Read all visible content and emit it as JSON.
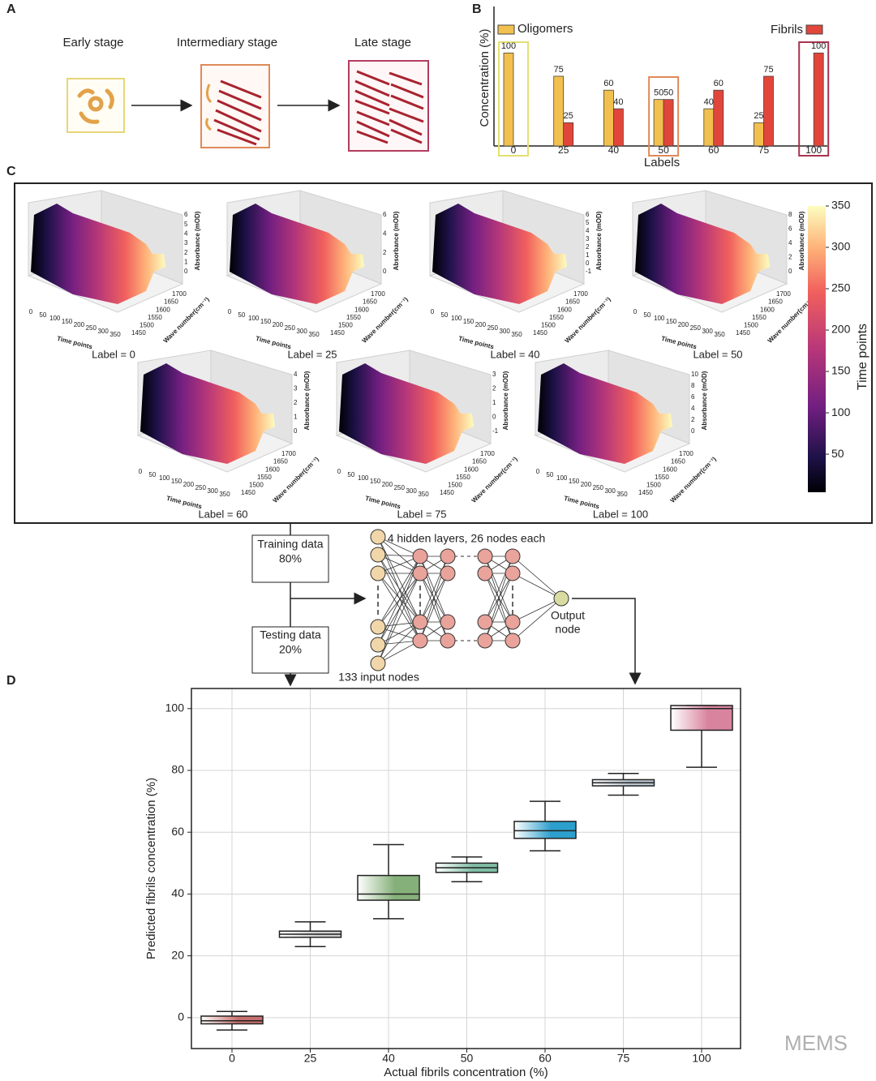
{
  "panel_labels": [
    "A",
    "B",
    "C",
    "D"
  ],
  "panel_a": {
    "stages": [
      "Early stage",
      "Intermediary stage",
      "Late stage"
    ]
  },
  "chart_data": [
    {
      "type": "bar",
      "ylabel": "Concentration (%)",
      "xlabel": "Labels",
      "categories": [
        "0",
        "25",
        "40",
        "50",
        "60",
        "75",
        "100"
      ],
      "series": [
        {
          "name": "Oligomers",
          "color": "#f2c04e",
          "values": [
            100,
            75,
            60,
            50,
            40,
            25,
            0
          ]
        },
        {
          "name": "Fibrils",
          "color": "#e2463a",
          "values": [
            0,
            25,
            40,
            50,
            60,
            75,
            100
          ]
        }
      ],
      "ylim": [
        0,
        150
      ]
    },
    {
      "type": "surface",
      "xlabel": "Time points",
      "ylabel": "Wave number(cm⁻¹)",
      "zlabel": "Absorbance (mOD)",
      "xlim": [
        0,
        350
      ],
      "xticks": [
        0,
        50,
        100,
        150,
        200,
        250,
        300,
        350
      ],
      "ylim": [
        1450,
        1700
      ],
      "yticks": [
        1450,
        1500,
        1550,
        1600,
        1650,
        1700
      ],
      "subplots": [
        {
          "title": "Label = 0",
          "zticks": [
            0,
            1,
            2,
            3,
            4,
            5,
            6
          ]
        },
        {
          "title": "Label = 25",
          "zticks": [
            0,
            2,
            4,
            6
          ]
        },
        {
          "title": "Label = 40",
          "zticks": [
            -1,
            0,
            1,
            2,
            3,
            4,
            5,
            6
          ]
        },
        {
          "title": "Label = 50",
          "zticks": [
            0,
            2,
            4,
            6,
            8
          ]
        },
        {
          "title": "Label = 60",
          "zticks": [
            0,
            1,
            2,
            3,
            4
          ]
        },
        {
          "title": "Label = 75",
          "zticks": [
            -1,
            0,
            1,
            2,
            3
          ]
        },
        {
          "title": "Label = 100",
          "zticks": [
            0,
            2,
            4,
            6,
            8,
            10
          ]
        }
      ],
      "colorbar": {
        "label": "Time points",
        "lim": [
          4,
          350
        ],
        "ticks": [
          50,
          100,
          150,
          200,
          250,
          300,
          350
        ]
      }
    },
    {
      "type": "box",
      "xlabel": "Actual fibrils concentration (%)",
      "ylabel": "Predicted fibrils concentration (%)",
      "categories": [
        "0",
        "25",
        "40",
        "50",
        "60",
        "75",
        "100"
      ],
      "boxes": [
        {
          "whislo": -4,
          "q1": -2,
          "med": -1,
          "q3": 0.5,
          "whishi": 2,
          "color": "#c8706e"
        },
        {
          "whislo": 23,
          "q1": 26,
          "med": 27,
          "q3": 28,
          "whishi": 31,
          "color": "#cfcfcf"
        },
        {
          "whislo": 32,
          "q1": 38,
          "med": 40,
          "q3": 46,
          "whishi": 56,
          "color": "#86b07a"
        },
        {
          "whislo": 44,
          "q1": 47,
          "med": 48.5,
          "q3": 50,
          "whishi": 52,
          "color": "#7fbca3"
        },
        {
          "whislo": 54,
          "q1": 58,
          "med": 60.5,
          "q3": 63.5,
          "whishi": 70,
          "color": "#2d9fcc"
        },
        {
          "whislo": 72,
          "q1": 75,
          "med": 76,
          "q3": 77,
          "whishi": 79,
          "color": "#b9c6d0"
        },
        {
          "whislo": 81,
          "q1": 93,
          "med": 100,
          "q3": 101,
          "whishi": 101,
          "color": "#d9849f"
        }
      ],
      "ylim": [
        -10,
        106.5
      ],
      "yticks": [
        0,
        20,
        40,
        60,
        80,
        100
      ],
      "grid": true
    }
  ],
  "network": {
    "training": [
      "Training data",
      "80%"
    ],
    "testing": [
      "Testing data",
      "20%"
    ],
    "hidden": "4 hidden layers, 26 nodes each",
    "output": [
      "Output",
      "node"
    ],
    "input": "133 input nodes"
  },
  "watermark": "MEMS"
}
